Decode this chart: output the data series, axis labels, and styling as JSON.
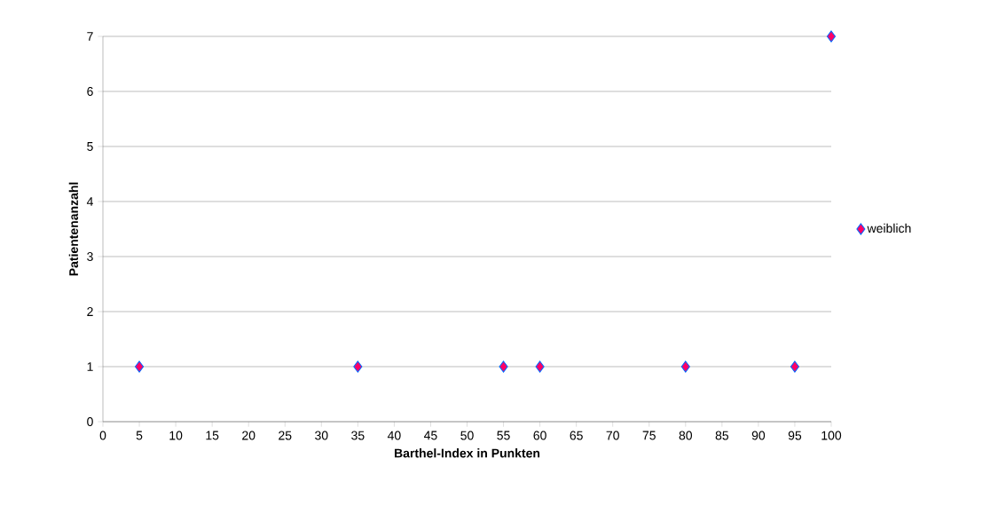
{
  "chart_data": {
    "type": "scatter",
    "xlabel": "Barthel-Index in Punkten",
    "ylabel": "Patientenanzahl",
    "x": [
      5,
      35,
      55,
      60,
      80,
      95,
      100
    ],
    "series": [
      {
        "name": "weiblich",
        "color": "#ff0066",
        "values": [
          1,
          1,
          1,
          1,
          1,
          1,
          7
        ]
      }
    ],
    "xlim": [
      0,
      100
    ],
    "xticks": [
      0,
      5,
      10,
      15,
      20,
      25,
      30,
      35,
      40,
      45,
      50,
      55,
      60,
      65,
      70,
      75,
      80,
      85,
      90,
      95,
      100
    ],
    "ylim": [
      0,
      7
    ],
    "yticks": [
      0,
      1,
      2,
      3,
      4,
      5,
      6,
      7
    ],
    "grid": "y",
    "legend": "right",
    "marker": "diamond"
  }
}
